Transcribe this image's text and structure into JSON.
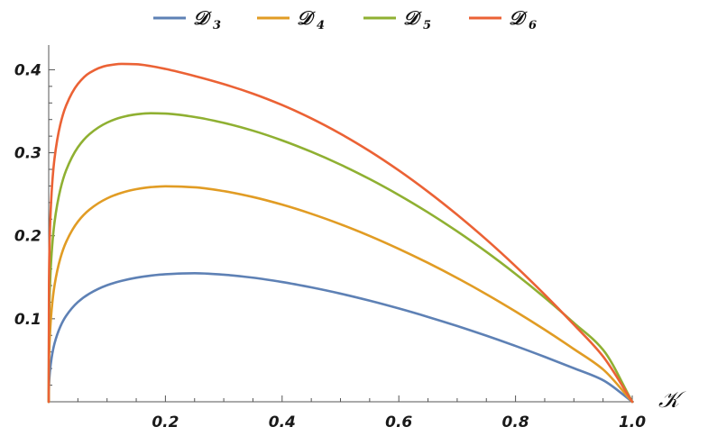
{
  "chart_data": {
    "type": "line",
    "title": "",
    "xlabel": "𝒦",
    "ylabel": "",
    "xlim": [
      0,
      1.0
    ],
    "ylim": [
      0,
      0.42
    ],
    "x_ticks": [
      0.2,
      0.4,
      0.6,
      0.8,
      1.0
    ],
    "x_tick_labels": [
      "0.2",
      "0.4",
      "0.6",
      "0.8",
      "1.0"
    ],
    "y_ticks": [
      0.1,
      0.2,
      0.3,
      0.4
    ],
    "y_tick_labels": [
      "0.1",
      "0.2",
      "0.3",
      "0.4"
    ],
    "grid": false,
    "legend_position": "top",
    "x": [
      0,
      0.0005,
      0.002,
      0.005,
      0.01,
      0.02,
      0.03,
      0.05,
      0.07,
      0.1,
      0.125,
      0.15,
      0.175,
      0.2,
      0.25,
      0.3,
      0.35,
      0.4,
      0.45,
      0.5,
      0.55,
      0.6,
      0.65,
      0.7,
      0.75,
      0.8,
      0.85,
      0.9,
      0.95,
      1.0
    ],
    "series": [
      {
        "name": "𝒟",
        "subscript": "3",
        "color": "#5e81b5",
        "values": [
          0,
          0.0196,
          0.0357,
          0.0529,
          0.0703,
          0.0907,
          0.1036,
          0.1201,
          0.1304,
          0.1404,
          0.1457,
          0.1494,
          0.152,
          0.1536,
          0.1548,
          0.1531,
          0.1495,
          0.1443,
          0.1378,
          0.1303,
          0.1218,
          0.1124,
          0.1022,
          0.0913,
          0.0796,
          0.0672,
          0.0541,
          0.0404,
          0.026,
          0
        ]
      },
      {
        "name": "𝒟",
        "subscript": "4",
        "color": "#e19c24",
        "values": [
          0,
          0.0473,
          0.0795,
          0.1107,
          0.1404,
          0.173,
          0.1927,
          0.217,
          0.2316,
          0.245,
          0.2518,
          0.2561,
          0.2586,
          0.2596,
          0.2584,
          0.2538,
          0.2467,
          0.2375,
          0.2265,
          0.2139,
          0.1998,
          0.1842,
          0.1673,
          0.1491,
          0.1296,
          0.1088,
          0.0868,
          0.0635,
          0.039,
          0
        ]
      },
      {
        "name": "𝒟",
        "subscript": "5",
        "color": "#8fb032",
        "values": [
          0,
          0.0884,
          0.1366,
          0.1786,
          0.2164,
          0.2559,
          0.2791,
          0.3066,
          0.3225,
          0.3363,
          0.3428,
          0.3463,
          0.3476,
          0.3472,
          0.3431,
          0.336,
          0.3266,
          0.3149,
          0.3012,
          0.2857,
          0.2683,
          0.2491,
          0.2281,
          0.2053,
          0.1806,
          0.154,
          0.1255,
          0.095,
          0.0626,
          0
        ]
      },
      {
        "name": "𝒟",
        "subscript": "6",
        "color": "#eb6235",
        "values": [
          0,
          0.1413,
          0.203,
          0.252,
          0.2933,
          0.3343,
          0.3572,
          0.3829,
          0.3963,
          0.405,
          0.407,
          0.4066,
          0.4044,
          0.401,
          0.3925,
          0.3827,
          0.3712,
          0.3575,
          0.3414,
          0.3229,
          0.302,
          0.2787,
          0.2531,
          0.2253,
          0.1954,
          0.1633,
          0.1291,
          0.0929,
          0.0546,
          0
        ]
      }
    ]
  }
}
